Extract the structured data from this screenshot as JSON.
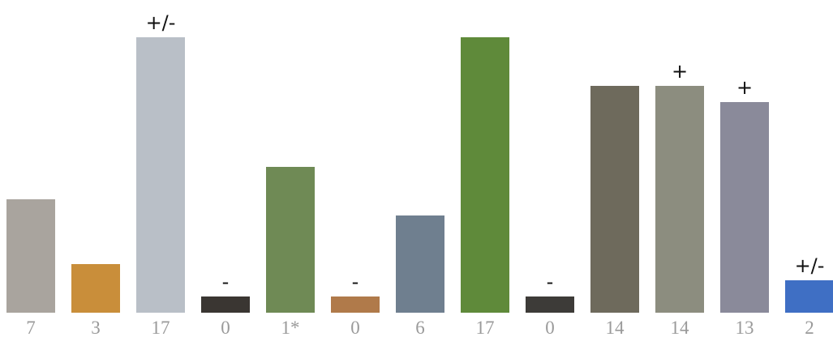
{
  "chart_data": {
    "type": "bar",
    "categories": [
      "7",
      "3",
      "17",
      "0",
      "1*",
      "0",
      "6",
      "17",
      "0",
      "14",
      "14",
      "13",
      "2"
    ],
    "values": [
      7,
      3,
      17,
      1,
      9,
      1,
      6,
      17,
      1,
      14,
      14,
      13,
      2
    ],
    "annotations": [
      null,
      null,
      "+/-",
      "-",
      null,
      "-",
      null,
      null,
      "-",
      null,
      "+",
      "+",
      "+/-"
    ],
    "colors": [
      "#a9a49e",
      "#c98e3a",
      "#b9bfc7",
      "#3a3632",
      "#6f8a55",
      "#b07a4a",
      "#6f7f8f",
      "#5f8a3a",
      "#3d3b38",
      "#6e6a5c",
      "#8c8d7f",
      "#8a8a9a",
      "#3f6fc4"
    ],
    "ylim": [
      0,
      17
    ]
  }
}
